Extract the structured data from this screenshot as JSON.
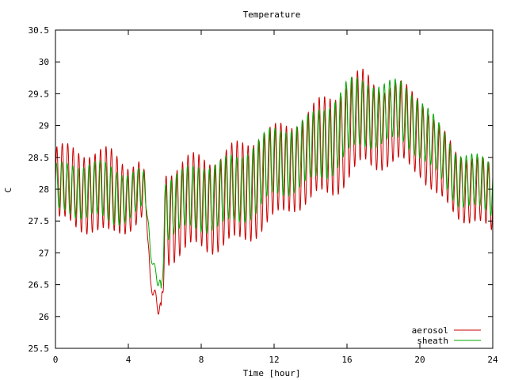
{
  "chart_data": {
    "type": "line",
    "title": "Temperature",
    "xlabel": "Time [hour]",
    "ylabel": "C",
    "xlim": [
      0,
      24
    ],
    "ylim": [
      25.5,
      30.5
    ],
    "xticks": [
      0,
      4,
      8,
      12,
      16,
      20,
      24
    ],
    "xtick_labels": [
      "0",
      "4",
      "8",
      "12",
      "16",
      "20",
      "24"
    ],
    "yticks": [
      25.5,
      26,
      26.5,
      27,
      27.5,
      28,
      28.5,
      29,
      29.5,
      30,
      30.5
    ],
    "ytick_labels": [
      "25.5",
      "26",
      "26.5",
      "27",
      "27.5",
      "28",
      "28.5",
      "29",
      "29.5",
      "30",
      "30.5"
    ],
    "grid": false,
    "legend_position": "bottom-right",
    "oscillation_period_hours": 0.3,
    "series": [
      {
        "name": "aerosol",
        "color": "#cc0000",
        "x": [
          0.0,
          1.0,
          2.0,
          3.0,
          4.0,
          4.8,
          5.0,
          5.2,
          5.5,
          5.8,
          6.0,
          7.0,
          8.0,
          9.0,
          10.0,
          11.0,
          12.0,
          13.0,
          14.0,
          15.0,
          16.0,
          17.0,
          18.0,
          19.0,
          20.0,
          21.0,
          22.0,
          23.0,
          24.0
        ],
        "center": [
          28.1,
          28.0,
          28.0,
          27.9,
          27.9,
          28.0,
          27.7,
          26.5,
          26.3,
          26.0,
          27.6,
          27.7,
          27.8,
          27.8,
          27.9,
          28.1,
          28.2,
          28.4,
          28.5,
          28.7,
          28.9,
          29.1,
          29.0,
          29.0,
          28.9,
          28.4,
          28.1,
          28.0,
          27.8
        ],
        "amplitude": [
          0.55,
          0.6,
          0.6,
          0.65,
          0.5,
          0.45,
          0.2,
          0.1,
          0.08,
          0.2,
          0.7,
          0.7,
          0.7,
          0.7,
          0.75,
          0.75,
          0.7,
          0.65,
          0.7,
          0.75,
          0.75,
          0.7,
          0.6,
          0.6,
          0.6,
          0.55,
          0.5,
          0.5,
          0.5
        ]
      },
      {
        "name": "sheath",
        "color": "#00aa00",
        "x": [
          0.0,
          1.0,
          2.0,
          3.0,
          4.0,
          4.8,
          5.0,
          5.2,
          5.5,
          5.8,
          6.0,
          7.0,
          8.0,
          9.0,
          10.0,
          11.0,
          12.0,
          13.0,
          14.0,
          15.0,
          16.0,
          17.0,
          18.0,
          19.0,
          20.0,
          21.0,
          22.0,
          23.0,
          24.0
        ],
        "center": [
          28.0,
          28.0,
          28.0,
          27.9,
          27.9,
          28.0,
          27.8,
          27.0,
          26.7,
          26.4,
          27.7,
          27.8,
          27.9,
          27.9,
          28.0,
          28.2,
          28.4,
          28.5,
          28.6,
          28.8,
          29.1,
          29.2,
          29.2,
          29.2,
          29.0,
          28.6,
          28.2,
          28.1,
          28.0
        ],
        "amplitude": [
          0.35,
          0.4,
          0.4,
          0.45,
          0.35,
          0.3,
          0.15,
          0.08,
          0.06,
          0.15,
          0.45,
          0.45,
          0.5,
          0.5,
          0.5,
          0.55,
          0.5,
          0.5,
          0.5,
          0.55,
          0.55,
          0.5,
          0.45,
          0.45,
          0.45,
          0.4,
          0.4,
          0.4,
          0.4
        ]
      }
    ]
  }
}
